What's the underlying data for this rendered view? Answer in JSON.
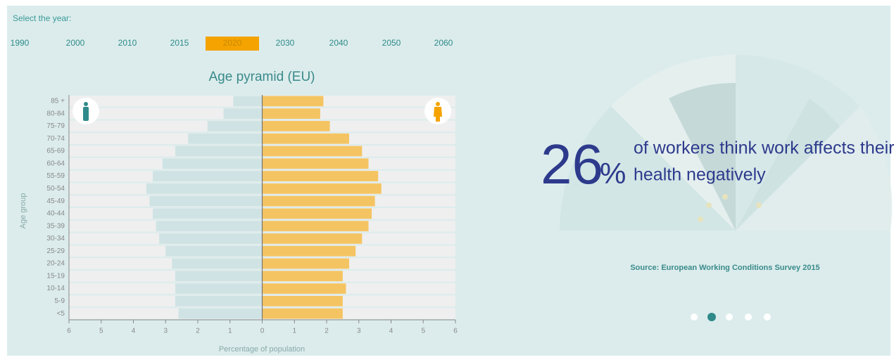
{
  "year_selector": {
    "label": "Select the year:",
    "years": [
      "1990",
      "2000",
      "2010",
      "2015",
      "2020",
      "2030",
      "2040",
      "2050",
      "2060"
    ],
    "selected": 4
  },
  "chart_data": {
    "type": "bar",
    "title": "Age pyramid (EU)",
    "x_label": "Percentage of population",
    "y_label": "Age group",
    "categories": [
      "<5",
      "5-9",
      "10-14",
      "15-19",
      "20-24",
      "25-29",
      "30-34",
      "35-39",
      "40-44",
      "45-49",
      "50-54",
      "55-59",
      "60-64",
      "65-69",
      "70-74",
      "75-79",
      "80-84",
      "85 +"
    ],
    "series": [
      {
        "color": "#cfe3e4",
        "values": [
          -2.6,
          -2.7,
          -2.7,
          -2.7,
          -2.8,
          -3.0,
          -3.2,
          -3.3,
          -3.4,
          -3.5,
          -3.6,
          -3.4,
          -3.1,
          -2.7,
          -2.3,
          -1.7,
          -1.2,
          -0.9
        ]
      },
      {
        "color": "#f5c462",
        "values": [
          2.5,
          2.5,
          2.6,
          2.5,
          2.7,
          2.9,
          3.1,
          3.3,
          3.4,
          3.5,
          3.7,
          3.6,
          3.3,
          3.1,
          2.7,
          2.1,
          1.8,
          1.9
        ]
      }
    ],
    "xlim": [
      -6,
      6
    ],
    "xticks": [
      {
        "value": -6,
        "label": "6"
      },
      {
        "value": -5,
        "label": "5"
      },
      {
        "value": -4,
        "label": "4"
      },
      {
        "value": -3,
        "label": "3"
      },
      {
        "value": -2,
        "label": "2"
      },
      {
        "value": -1,
        "label": "1"
      },
      0,
      1,
      2,
      3,
      4,
      5,
      6
    ]
  },
  "stat_panel": {
    "number": "26",
    "unit": "%",
    "text_lines": [
      "of workers think work affects their",
      "health negatively"
    ],
    "source": "Source: European Working Conditions Survey 2015"
  }
}
